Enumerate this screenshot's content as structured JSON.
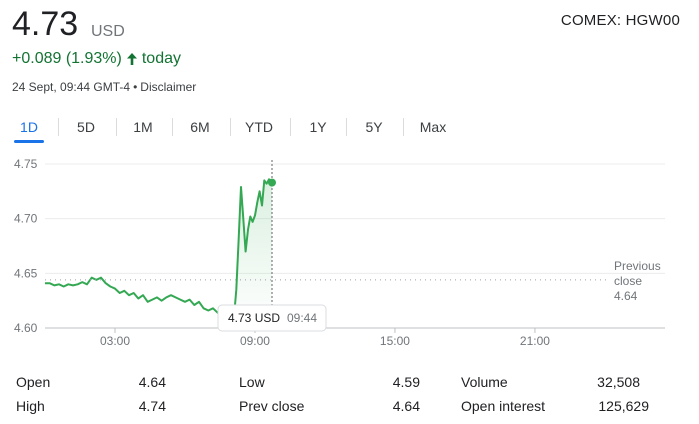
{
  "quote": {
    "price": "4.73",
    "currency": "USD",
    "exchange": "COMEX: HGW00",
    "change": "+0.089 (1.93%)",
    "change_period": "today",
    "change_color": "#137333",
    "timestamp": "24 Sept, 09:44 GMT-4",
    "separator": "•",
    "disclaimer": "Disclaimer"
  },
  "range_tabs": [
    {
      "label": "1D",
      "active": true
    },
    {
      "label": "5D",
      "active": false
    },
    {
      "label": "1M",
      "active": false
    },
    {
      "label": "6M",
      "active": false
    },
    {
      "label": "YTD",
      "active": false
    },
    {
      "label": "1Y",
      "active": false
    },
    {
      "label": "5Y",
      "active": false
    },
    {
      "label": "Max",
      "active": false
    }
  ],
  "chart_data": {
    "type": "line",
    "y_ticks": [
      "4.75",
      "4.70",
      "4.65",
      "4.60"
    ],
    "ylim": [
      4.6,
      4.75
    ],
    "x_ticks": [
      "03:00",
      "09:00",
      "15:00",
      "21:00"
    ],
    "previous_close": {
      "label_line1": "Previous",
      "label_line2": "close",
      "value": "4.64",
      "y": 4.644
    },
    "tooltip": {
      "price": "4.73 USD",
      "time": "09:44"
    },
    "line_color": "#34a853",
    "points": [
      [
        0,
        4.641
      ],
      [
        0.2,
        4.641
      ],
      [
        0.4,
        4.639
      ],
      [
        0.6,
        4.64
      ],
      [
        0.8,
        4.638
      ],
      [
        1.0,
        4.64
      ],
      [
        1.2,
        4.639
      ],
      [
        1.4,
        4.64
      ],
      [
        1.6,
        4.642
      ],
      [
        1.8,
        4.64
      ],
      [
        2.0,
        4.646
      ],
      [
        2.2,
        4.644
      ],
      [
        2.4,
        4.646
      ],
      [
        2.6,
        4.641
      ],
      [
        2.8,
        4.638
      ],
      [
        3.0,
        4.636
      ],
      [
        3.2,
        4.632
      ],
      [
        3.4,
        4.634
      ],
      [
        3.6,
        4.63
      ],
      [
        3.8,
        4.632
      ],
      [
        4.0,
        4.627
      ],
      [
        4.2,
        4.63
      ],
      [
        4.4,
        4.624
      ],
      [
        4.6,
        4.626
      ],
      [
        4.8,
        4.628
      ],
      [
        5.0,
        4.625
      ],
      [
        5.2,
        4.628
      ],
      [
        5.4,
        4.63
      ],
      [
        5.6,
        4.628
      ],
      [
        5.8,
        4.626
      ],
      [
        6.0,
        4.624
      ],
      [
        6.2,
        4.626
      ],
      [
        6.4,
        4.621
      ],
      [
        6.6,
        4.624
      ],
      [
        6.8,
        4.618
      ],
      [
        7.0,
        4.616
      ],
      [
        7.2,
        4.618
      ],
      [
        7.4,
        4.614
      ],
      [
        7.6,
        4.61
      ],
      [
        7.8,
        4.607
      ],
      [
        8.0,
        4.612
      ],
      [
        8.1,
        4.61
      ],
      [
        8.2,
        4.635
      ],
      [
        8.3,
        4.68
      ],
      [
        8.4,
        4.729
      ],
      [
        8.5,
        4.7
      ],
      [
        8.6,
        4.67
      ],
      [
        8.7,
        4.69
      ],
      [
        8.8,
        4.702
      ],
      [
        8.9,
        4.697
      ],
      [
        9.0,
        4.703
      ],
      [
        9.1,
        4.715
      ],
      [
        9.2,
        4.725
      ],
      [
        9.3,
        4.712
      ],
      [
        9.4,
        4.735
      ],
      [
        9.5,
        4.732
      ],
      [
        9.6,
        4.736
      ],
      [
        9.73,
        4.733
      ]
    ]
  },
  "stats": [
    {
      "label": "Open",
      "value": "4.64"
    },
    {
      "label": "High",
      "value": "4.74"
    },
    {
      "label": "Low",
      "value": "4.59"
    },
    {
      "label": "Prev close",
      "value": "4.64"
    },
    {
      "label": "Volume",
      "value": "32,508"
    },
    {
      "label": "Open interest",
      "value": "125,629"
    }
  ]
}
